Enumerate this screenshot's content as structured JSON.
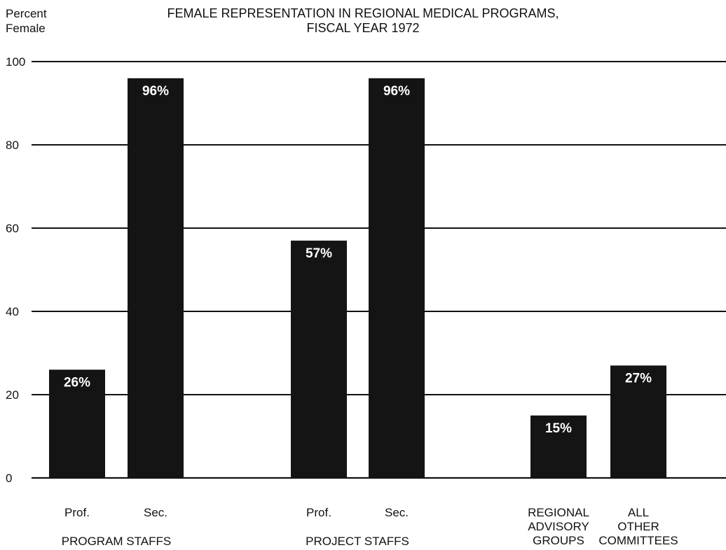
{
  "chart_data": {
    "type": "bar",
    "title_lines": [
      "FEMALE REPRESENTATION IN REGIONAL MEDICAL PROGRAMS,",
      "FISCAL YEAR 1972"
    ],
    "ylabel_lines": [
      "Percent",
      "Female"
    ],
    "ylim": [
      0,
      100
    ],
    "yticks": [
      0,
      20,
      40,
      60,
      80,
      100
    ],
    "grid": true,
    "groups": [
      {
        "label_lines": [
          "PROGRAM STAFFS"
        ],
        "bars": [
          {
            "label_lines": [
              "Prof."
            ],
            "value": 26,
            "value_label": "26%"
          },
          {
            "label_lines": [
              "Sec."
            ],
            "value": 96,
            "value_label": "96%"
          }
        ]
      },
      {
        "label_lines": [
          "PROJECT STAFFS"
        ],
        "bars": [
          {
            "label_lines": [
              "Prof."
            ],
            "value": 57,
            "value_label": "57%"
          },
          {
            "label_lines": [
              "Sec."
            ],
            "value": 96,
            "value_label": "96%"
          }
        ]
      },
      {
        "label_lines": [],
        "bars": [
          {
            "label_lines": [
              "REGIONAL",
              "ADVISORY",
              "GROUPS"
            ],
            "value": 15,
            "value_label": "15%"
          },
          {
            "label_lines": [
              "ALL",
              "OTHER",
              "COMMITTEES"
            ],
            "value": 27,
            "value_label": "27%"
          }
        ]
      }
    ],
    "bar_color": "#141414",
    "grid_color": "#111111"
  }
}
